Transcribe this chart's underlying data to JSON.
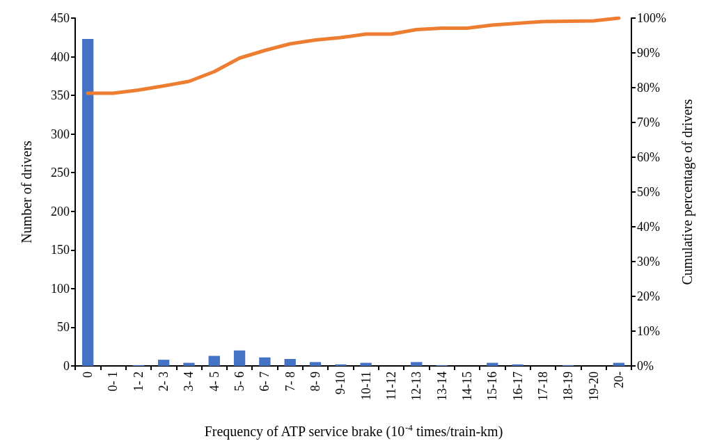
{
  "chart_data": {
    "type": "bar",
    "xlabel": "Frequency of ATP service brake (10$^{-4}$ times/train-km)",
    "ylabel": "Number of drivers",
    "y2label": "Cumulative percentage of drivers",
    "categories": [
      "0",
      "0- 1",
      "1- 2",
      "2- 3",
      "3- 4",
      "4- 5",
      "5- 6",
      "6- 7",
      "7- 8",
      "8- 9",
      "9-10",
      "10-11",
      "11-12",
      "12-13",
      "13-14",
      "14-15",
      "15-16",
      "16-17",
      "17-18",
      "18-19",
      "19-20",
      "20-"
    ],
    "series": [
      {
        "color": "#4472c4",
        "values": [
          423,
          0,
          1,
          8,
          4,
          13,
          20,
          11,
          9,
          5,
          2,
          4,
          0,
          5,
          1,
          0,
          4,
          2,
          0,
          1,
          0,
          4
        ]
      },
      {
        "type": "line",
        "axis": "y2",
        "color": "#ed7d31",
        "values": [
          78.4,
          78.4,
          79.3,
          80.5,
          81.8,
          84.6,
          88.5,
          90.7,
          92.6,
          93.7,
          94.4,
          95.4,
          95.4,
          96.7,
          97.1,
          97.1,
          98.0,
          98.5,
          99.0,
          99.1,
          99.2,
          100
        ]
      }
    ],
    "ylim": [
      0,
      450
    ],
    "yticks": [
      0,
      50,
      100,
      150,
      200,
      250,
      300,
      350,
      400,
      450
    ],
    "y2lim": [
      0,
      100
    ],
    "y2ticks": [
      {
        "value": 0,
        "label": "0%"
      },
      {
        "value": 10,
        "label": "10%"
      },
      {
        "value": 20,
        "label": "20%"
      },
      {
        "value": 30,
        "label": "30%"
      },
      {
        "value": 40,
        "label": "40%"
      },
      {
        "value": 50,
        "label": "50%"
      },
      {
        "value": 60,
        "label": "60%"
      },
      {
        "value": 70,
        "label": "70%"
      },
      {
        "value": 80,
        "label": "80%"
      },
      {
        "value": 90,
        "label": "90%"
      },
      {
        "value": 100,
        "label": "100%"
      }
    ],
    "grid": false,
    "marker": "none"
  }
}
